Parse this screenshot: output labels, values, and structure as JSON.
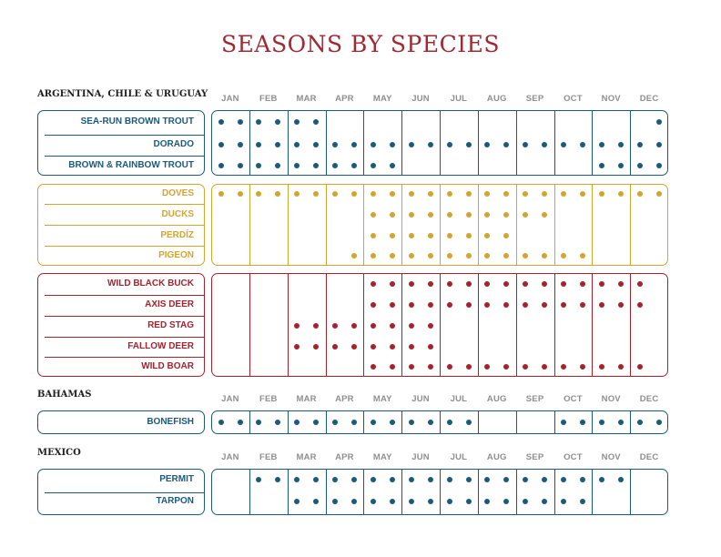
{
  "title": "SEASONS BY SPECIES",
  "months": [
    "JAN",
    "FEB",
    "MAR",
    "APR",
    "MAY",
    "JUN",
    "JUL",
    "AUG",
    "SEP",
    "OCT",
    "NOV",
    "DEC"
  ],
  "colors": {
    "blue": "#1b5a7c",
    "gold": "#d4a42f",
    "red": "#a8222d"
  },
  "regions": [
    {
      "name": "ARGENTINA, CHILE & URUGUAY",
      "groups": [
        {
          "color": "blue",
          "species": [
            {
              "name": "SEA-RUN BROWN TROUT",
              "dots": [
                0,
                1,
                2,
                3,
                4,
                5,
                23
              ]
            },
            {
              "name": "DORADO",
              "dots": [
                0,
                1,
                2,
                3,
                4,
                5,
                6,
                7,
                8,
                9,
                10,
                11,
                12,
                13,
                14,
                15,
                16,
                17,
                18,
                19,
                20,
                21,
                22,
                23
              ]
            },
            {
              "name": "BROWN & RAINBOW TROUT",
              "dots": [
                0,
                1,
                2,
                3,
                4,
                5,
                6,
                7,
                8,
                9,
                20,
                21,
                22,
                23
              ]
            }
          ]
        },
        {
          "color": "gold",
          "species": [
            {
              "name": "DOVES",
              "dots": [
                0,
                1,
                2,
                3,
                4,
                5,
                6,
                7,
                8,
                9,
                10,
                11,
                12,
                13,
                14,
                15,
                16,
                17,
                18,
                19,
                20,
                21,
                22,
                23
              ]
            },
            {
              "name": "DUCKS",
              "dots": [
                8,
                9,
                10,
                11,
                12,
                13,
                14,
                15,
                16,
                17
              ]
            },
            {
              "name": "PERDÍZ",
              "dots": [
                8,
                9,
                10,
                11,
                12,
                13,
                14,
                15
              ]
            },
            {
              "name": "PIGEON",
              "dots": [
                7,
                8,
                9,
                10,
                11,
                12,
                13,
                14,
                15,
                16,
                17,
                18,
                19
              ]
            }
          ]
        },
        {
          "color": "red",
          "species": [
            {
              "name": "WILD BLACK BUCK",
              "dots": [
                8,
                9,
                10,
                11,
                12,
                13,
                14,
                15,
                16,
                17,
                18,
                19,
                20,
                21,
                22
              ]
            },
            {
              "name": "AXIS DEER",
              "dots": [
                8,
                9,
                10,
                11,
                12,
                13,
                14,
                15,
                16,
                17,
                18,
                19,
                20,
                21,
                22
              ]
            },
            {
              "name": "RED STAG",
              "dots": [
                4,
                5,
                6,
                7,
                8,
                9,
                10,
                11
              ]
            },
            {
              "name": "FALLOW DEER",
              "dots": [
                4,
                5,
                6,
                7,
                8,
                9,
                10,
                11
              ]
            },
            {
              "name": "WILD BOAR",
              "dots": [
                8,
                9,
                10,
                11,
                12,
                13,
                14,
                15,
                16,
                17,
                18,
                19,
                20,
                21,
                22
              ]
            }
          ]
        }
      ]
    },
    {
      "name": "BAHAMAS",
      "groups": [
        {
          "color": "blue",
          "species": [
            {
              "name": "BONEFISH",
              "dots": [
                0,
                1,
                2,
                3,
                4,
                5,
                6,
                7,
                8,
                9,
                10,
                11,
                12,
                13,
                18,
                19,
                20,
                21,
                22,
                23
              ]
            }
          ]
        }
      ]
    },
    {
      "name": "MEXICO",
      "groups": [
        {
          "color": "blue",
          "species": [
            {
              "name": "PERMIT",
              "dots": [
                2,
                3,
                4,
                5,
                6,
                7,
                8,
                9,
                10,
                11,
                12,
                13,
                14,
                15,
                16,
                17,
                18,
                19,
                20,
                21
              ]
            },
            {
              "name": "TARPON",
              "dots": [
                4,
                5,
                6,
                7,
                8,
                9,
                10,
                11,
                12,
                13,
                14,
                15,
                16,
                17,
                18,
                19
              ]
            }
          ]
        }
      ]
    }
  ]
}
